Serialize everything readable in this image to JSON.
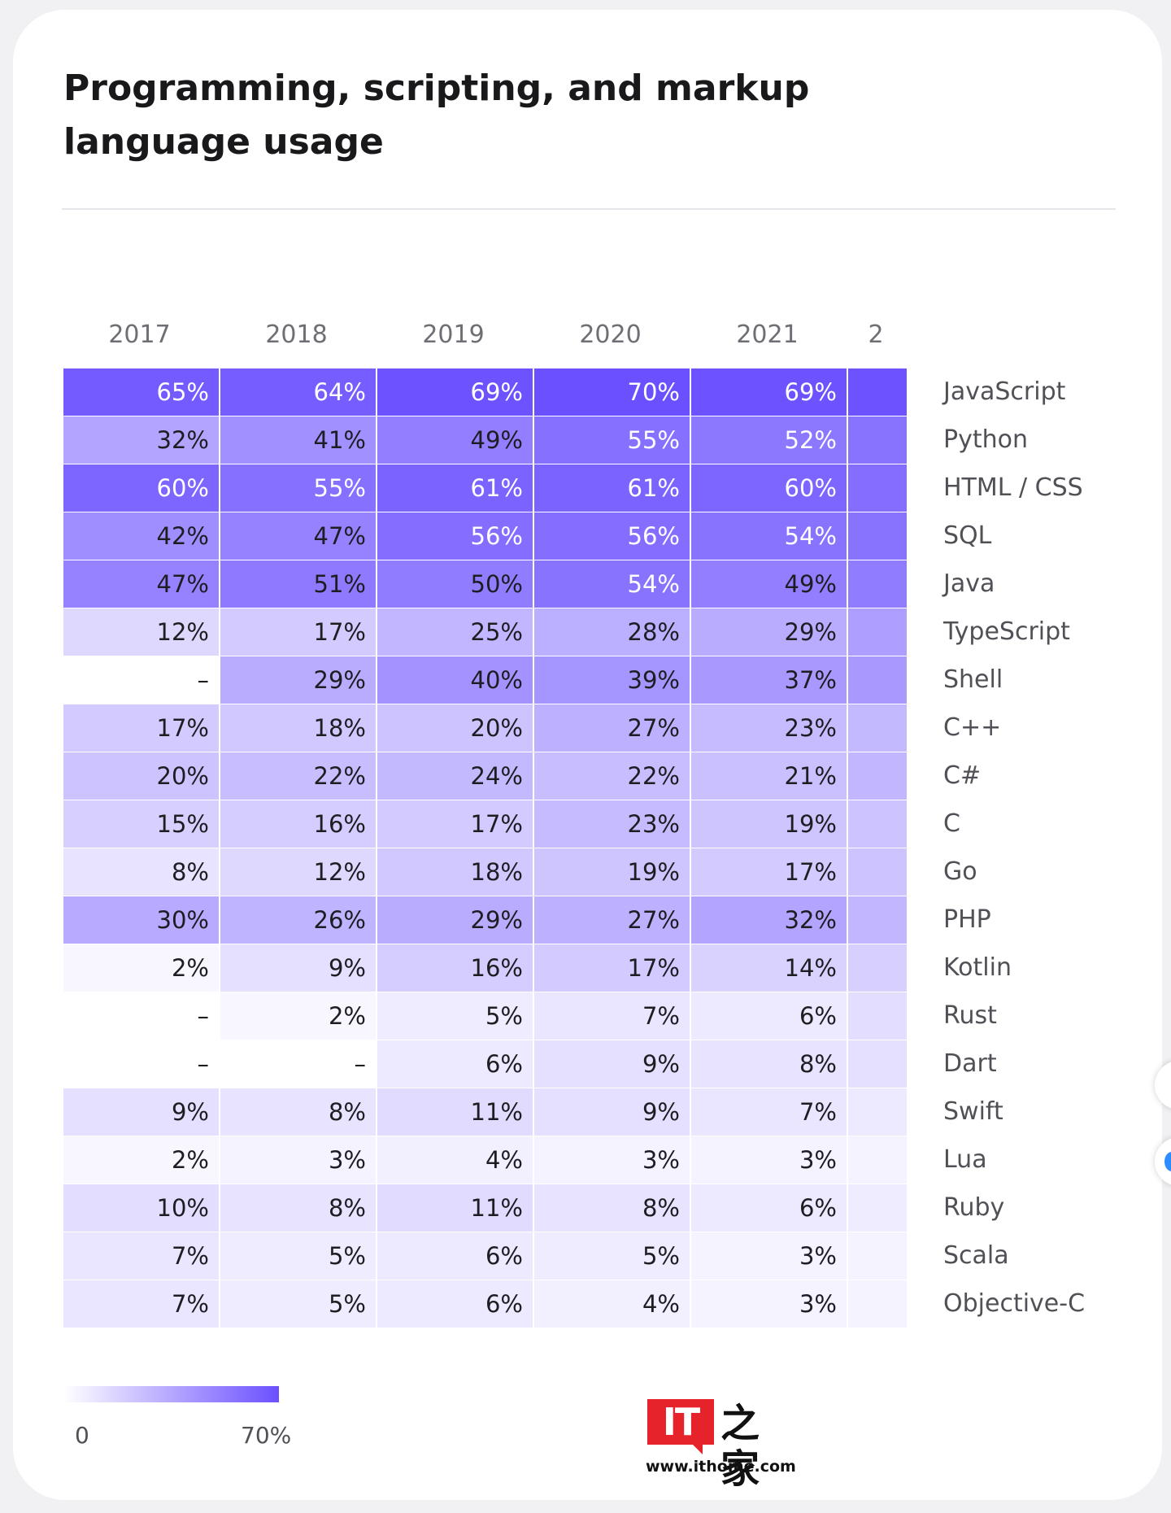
{
  "title": "Programming, scripting, and markup language usage",
  "chart_data": {
    "type": "heatmap",
    "title": "Programming, scripting, and markup language usage",
    "columns": [
      "2017",
      "2018",
      "2019",
      "2020",
      "2021",
      "2"
    ],
    "rows": [
      "JavaScript",
      "Python",
      "HTML / CSS",
      "SQL",
      "Java",
      "TypeScript",
      "Shell",
      "C++",
      "C#",
      "C",
      "Go",
      "PHP",
      "Kotlin",
      "Rust",
      "Dart",
      "Swift",
      "Lua",
      "Ruby",
      "Scala",
      "Objective-C"
    ],
    "values": [
      [
        65,
        64,
        69,
        70,
        69,
        69
      ],
      [
        32,
        41,
        49,
        55,
        52,
        54
      ],
      [
        60,
        55,
        61,
        61,
        60,
        56
      ],
      [
        42,
        47,
        56,
        56,
        54,
        54
      ],
      [
        47,
        51,
        50,
        54,
        49,
        50
      ],
      [
        12,
        17,
        25,
        28,
        29,
        35
      ],
      [
        null,
        29,
        40,
        39,
        37,
        37
      ],
      [
        17,
        18,
        20,
        27,
        23,
        24
      ],
      [
        20,
        22,
        24,
        22,
        21,
        25
      ],
      [
        15,
        16,
        17,
        23,
        19,
        20
      ],
      [
        8,
        12,
        18,
        19,
        17,
        20
      ],
      [
        30,
        26,
        29,
        27,
        32,
        25
      ],
      [
        2,
        9,
        16,
        17,
        14,
        15
      ],
      [
        null,
        2,
        5,
        7,
        6,
        10
      ],
      [
        null,
        null,
        6,
        9,
        8,
        9
      ],
      [
        9,
        8,
        11,
        9,
        7,
        6
      ],
      [
        2,
        3,
        4,
        3,
        3,
        3
      ],
      [
        10,
        8,
        11,
        8,
        6,
        5
      ],
      [
        7,
        5,
        6,
        5,
        3,
        3
      ],
      [
        7,
        5,
        6,
        4,
        3,
        3
      ]
    ],
    "labels": [
      [
        "65%",
        "64%",
        "69%",
        "70%",
        "69%",
        ""
      ],
      [
        "32%",
        "41%",
        "49%",
        "55%",
        "52%",
        ""
      ],
      [
        "60%",
        "55%",
        "61%",
        "61%",
        "60%",
        ""
      ],
      [
        "42%",
        "47%",
        "56%",
        "56%",
        "54%",
        ""
      ],
      [
        "47%",
        "51%",
        "50%",
        "54%",
        "49%",
        ""
      ],
      [
        "12%",
        "17%",
        "25%",
        "28%",
        "29%",
        ""
      ],
      [
        "–",
        "29%",
        "40%",
        "39%",
        "37%",
        ""
      ],
      [
        "17%",
        "18%",
        "20%",
        "27%",
        "23%",
        ""
      ],
      [
        "20%",
        "22%",
        "24%",
        "22%",
        "21%",
        ""
      ],
      [
        "15%",
        "16%",
        "17%",
        "23%",
        "19%",
        ""
      ],
      [
        "8%",
        "12%",
        "18%",
        "19%",
        "17%",
        ""
      ],
      [
        "30%",
        "26%",
        "29%",
        "27%",
        "32%",
        ""
      ],
      [
        "2%",
        "9%",
        "16%",
        "17%",
        "14%",
        ""
      ],
      [
        "–",
        "2%",
        "5%",
        "7%",
        "6%",
        ""
      ],
      [
        "–",
        "–",
        "6%",
        "9%",
        "8%",
        ""
      ],
      [
        "9%",
        "8%",
        "11%",
        "9%",
        "7%",
        ""
      ],
      [
        "2%",
        "3%",
        "4%",
        "3%",
        "3%",
        ""
      ],
      [
        "10%",
        "8%",
        "11%",
        "8%",
        "6%",
        ""
      ],
      [
        "7%",
        "5%",
        "6%",
        "5%",
        "3%",
        ""
      ],
      [
        "7%",
        "5%",
        "6%",
        "4%",
        "3%",
        ""
      ]
    ],
    "color_scale": {
      "min": 0,
      "max": 70,
      "min_label": "0",
      "max_label": "70%",
      "color_low": "#ffffff",
      "color_high": "#6b50ff"
    }
  },
  "watermark": {
    "logo": "IT",
    "mark": "之家",
    "url": "www.ithome.com"
  }
}
